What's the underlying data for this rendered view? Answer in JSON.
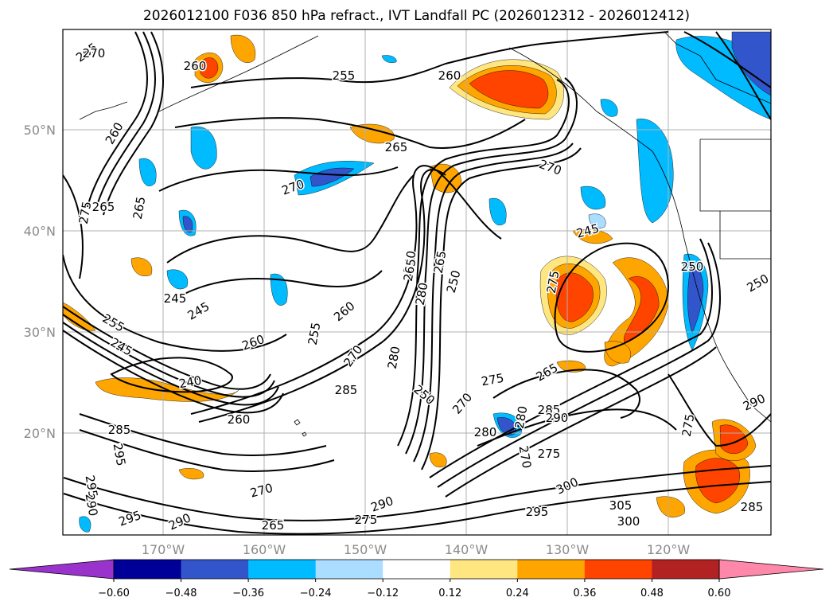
{
  "title": "2026012100 F036 850 hPa refract., IVT Landfall PC (2026012312 - 2026012412)",
  "map": {
    "lat_labels": [
      "50°N",
      "40°N",
      "30°N",
      "20°N"
    ],
    "lon_labels": [
      "170°W",
      "160°W",
      "150°W",
      "140°W",
      "130°W",
      "120°W"
    ],
    "contour_labels": [
      {
        "text": "265"
      },
      {
        "text": "270"
      },
      {
        "text": "260"
      },
      {
        "text": "255"
      },
      {
        "text": "260"
      },
      {
        "text": "260"
      },
      {
        "text": "265"
      },
      {
        "text": "270"
      },
      {
        "text": "270"
      },
      {
        "text": "265"
      },
      {
        "text": "265"
      },
      {
        "text": "275"
      },
      {
        "text": "245"
      },
      {
        "text": "250"
      },
      {
        "text": "240"
      },
      {
        "text": "265"
      },
      {
        "text": "280"
      },
      {
        "text": "250"
      },
      {
        "text": "255"
      },
      {
        "text": "245"
      },
      {
        "text": "245"
      },
      {
        "text": "260"
      },
      {
        "text": "265"
      },
      {
        "text": "255"
      },
      {
        "text": "260"
      },
      {
        "text": "270"
      },
      {
        "text": "280"
      },
      {
        "text": "275"
      },
      {
        "text": "245"
      },
      {
        "text": "240"
      },
      {
        "text": "285"
      },
      {
        "text": "250"
      },
      {
        "text": "275"
      },
      {
        "text": "265"
      },
      {
        "text": "270"
      },
      {
        "text": "285"
      },
      {
        "text": "260"
      },
      {
        "text": "285"
      },
      {
        "text": "295"
      },
      {
        "text": "280"
      },
      {
        "text": "290"
      },
      {
        "text": "275"
      },
      {
        "text": "270"
      },
      {
        "text": "275"
      },
      {
        "text": "295"
      },
      {
        "text": "270"
      },
      {
        "text": "290"
      },
      {
        "text": "295"
      },
      {
        "text": "290"
      },
      {
        "text": "300"
      },
      {
        "text": "305"
      },
      {
        "text": "300"
      },
      {
        "text": "285"
      },
      {
        "text": "290"
      },
      {
        "text": "295"
      },
      {
        "text": "265"
      },
      {
        "text": "275"
      },
      {
        "text": "250"
      },
      {
        "text": "290"
      },
      {
        "text": "280"
      }
    ]
  },
  "colorbar": {
    "ticks": [
      "−0.60",
      "−0.48",
      "−0.36",
      "−0.24",
      "−0.12",
      "0.12",
      "0.24",
      "0.36",
      "0.48",
      "0.60"
    ],
    "colors": [
      "#9933cc",
      "#000099",
      "#3355cc",
      "#00bbff",
      "#aaddff",
      "#ffffff",
      "#ffe680",
      "#ffa500",
      "#ff4400",
      "#b22222",
      "#ff88aa"
    ]
  },
  "colors": {
    "neg_strong": "#3355cc",
    "neg_mid": "#00bbff",
    "neg_light": "#aaddff",
    "pos_light": "#ffe680",
    "pos_mid": "#ffa500",
    "pos_strong": "#ff4400"
  }
}
